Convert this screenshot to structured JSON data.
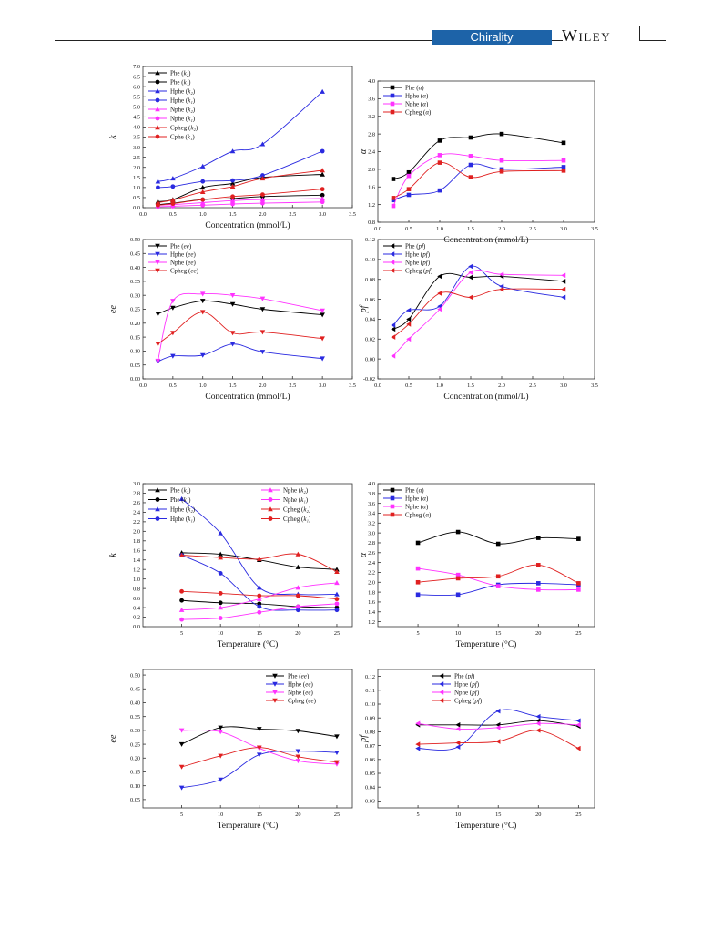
{
  "header": {
    "journal": "Chirality",
    "publisher": "WILEY"
  },
  "chart_data": [
    {
      "id": "c1",
      "type": "scatter",
      "smooth": true,
      "xlabel": "Concentration (mmol/L)",
      "ylabel": "k",
      "xlim": [
        0,
        3.5
      ],
      "ylim": [
        0,
        7.0
      ],
      "xticks": [
        "0.0",
        "0.5",
        "1.0",
        "1.5",
        "2.0",
        "2.5",
        "3.0",
        "3.5"
      ],
      "yticks": [
        "0.0",
        "0.5",
        "1.0",
        "1.5",
        "2.0",
        "2.5",
        "3.0",
        "3.5",
        "4.0",
        "4.5",
        "5.0",
        "5.5",
        "6.0",
        "6.5",
        "7.0"
      ],
      "x": [
        0.25,
        0.5,
        1.0,
        1.5,
        2.0,
        3.0
      ],
      "legend": "top-left",
      "series": [
        {
          "label": "Phe (k₂)",
          "color": "#000000",
          "marker": "tri-up",
          "values": [
            0.3,
            0.4,
            1.0,
            1.2,
            1.5,
            1.65
          ]
        },
        {
          "label": "Phe (k₁)",
          "color": "#000000",
          "marker": "circle",
          "values": [
            0.15,
            0.22,
            0.4,
            0.45,
            0.55,
            0.62
          ]
        },
        {
          "label": "Hphe (k₂)",
          "color": "#2a2ae0",
          "marker": "tri-up",
          "values": [
            1.3,
            1.45,
            2.05,
            2.8,
            3.15,
            5.75
          ]
        },
        {
          "label": "Hphe (k₁)",
          "color": "#2a2ae0",
          "marker": "circle",
          "values": [
            1.0,
            1.05,
            1.3,
            1.35,
            1.6,
            2.8
          ]
        },
        {
          "label": "Nphe (k₂)",
          "color": "#ff33ff",
          "marker": "tri-up",
          "values": [
            0.12,
            0.15,
            0.25,
            0.35,
            0.4,
            0.45
          ]
        },
        {
          "label": "Nphe (k₁)",
          "color": "#ff33ff",
          "marker": "circle",
          "values": [
            0.05,
            0.07,
            0.12,
            0.18,
            0.22,
            0.28
          ]
        },
        {
          "label": "Cpheg (k₂)",
          "color": "#e02020",
          "marker": "tri-up",
          "values": [
            0.25,
            0.38,
            0.78,
            1.05,
            1.45,
            1.85
          ]
        },
        {
          "label": "Cphe (k₁)",
          "color": "#e02020",
          "marker": "circle",
          "values": [
            0.12,
            0.2,
            0.4,
            0.55,
            0.65,
            0.92
          ]
        }
      ]
    },
    {
      "id": "c2",
      "type": "scatter",
      "smooth": true,
      "xlabel": "Concentration (mmol/L)",
      "ylabel": "α",
      "xlim": [
        0,
        3.5
      ],
      "ylim": [
        0.8,
        4.0
      ],
      "xticks": [
        "0.0",
        "0.5",
        "1.0",
        "1.5",
        "2.0",
        "2.5",
        "3.0",
        "3.5"
      ],
      "yticks": [
        "0.8",
        "1.2",
        "1.6",
        "2.0",
        "2.4",
        "2.8",
        "3.2",
        "3.6",
        "4.0"
      ],
      "x": [
        0.25,
        0.5,
        1.0,
        1.5,
        2.0,
        3.0
      ],
      "legend": "top-left",
      "series": [
        {
          "label": "Phe (α)",
          "color": "#000000",
          "marker": "square",
          "values": [
            1.78,
            1.93,
            2.65,
            2.72,
            2.8,
            2.6
          ]
        },
        {
          "label": "Hphe (α)",
          "color": "#2a2ae0",
          "marker": "square",
          "values": [
            1.3,
            1.42,
            1.52,
            2.1,
            2.0,
            2.05
          ]
        },
        {
          "label": "Nphe (α)",
          "color": "#ff33ff",
          "marker": "square",
          "values": [
            1.17,
            1.85,
            2.32,
            2.3,
            2.2,
            2.2
          ]
        },
        {
          "label": "Cpheg (α)",
          "color": "#e02020",
          "marker": "square",
          "values": [
            1.35,
            1.55,
            2.15,
            1.82,
            1.95,
            1.97
          ]
        }
      ]
    },
    {
      "id": "c3",
      "type": "scatter",
      "smooth": true,
      "xlabel": "Concentration (mmol/L)",
      "ylabel": "ee",
      "xlim": [
        0,
        3.5
      ],
      "ylim": [
        0,
        0.5
      ],
      "xticks": [
        "0.0",
        "0.5",
        "1.0",
        "1.5",
        "2.0",
        "2.5",
        "3.0",
        "3.5"
      ],
      "yticks": [
        "0.00",
        "0.05",
        "0.10",
        "0.15",
        "0.20",
        "0.25",
        "0.30",
        "0.35",
        "0.40",
        "0.45",
        "0.50"
      ],
      "x": [
        0.25,
        0.5,
        1.0,
        1.5,
        2.0,
        3.0
      ],
      "legend": "top-left",
      "series": [
        {
          "label": "Phe (ee)",
          "color": "#000000",
          "marker": "tri-down",
          "values": [
            0.233,
            0.255,
            0.28,
            0.268,
            0.25,
            0.23
          ]
        },
        {
          "label": "Hphe (ee)",
          "color": "#2a2ae0",
          "marker": "tri-down",
          "values": [
            0.062,
            0.082,
            0.085,
            0.125,
            0.097,
            0.073
          ]
        },
        {
          "label": "Nphe (ee)",
          "color": "#ff33ff",
          "marker": "tri-down",
          "values": [
            0.065,
            0.28,
            0.305,
            0.3,
            0.288,
            0.245
          ]
        },
        {
          "label": "Cpheg (ee)",
          "color": "#e02020",
          "marker": "tri-down",
          "values": [
            0.125,
            0.165,
            0.24,
            0.165,
            0.168,
            0.145
          ]
        }
      ]
    },
    {
      "id": "c4",
      "type": "scatter",
      "smooth": true,
      "xlabel": "Concentration (mmol/L)",
      "ylabel": "pf",
      "xlim": [
        0,
        3.5
      ],
      "ylim": [
        -0.02,
        0.12
      ],
      "xticks": [
        "0.0",
        "0.5",
        "1.0",
        "1.5",
        "2.0",
        "2.5",
        "3.0",
        "3.5"
      ],
      "yticks": [
        "-0.02",
        "0.00",
        "0.02",
        "0.04",
        "0.06",
        "0.08",
        "0.10",
        "0.12"
      ],
      "x": [
        0.25,
        0.5,
        1.0,
        1.5,
        2.0,
        3.0
      ],
      "legend": "top-left",
      "series": [
        {
          "label": "Phe (pf)",
          "color": "#000000",
          "marker": "tri-left",
          "values": [
            0.03,
            0.04,
            0.083,
            0.082,
            0.083,
            0.078
          ]
        },
        {
          "label": "Hphe (pf)",
          "color": "#2a2ae0",
          "marker": "tri-left",
          "values": [
            0.034,
            0.049,
            0.053,
            0.093,
            0.073,
            0.062
          ]
        },
        {
          "label": "Nphe (pf)",
          "color": "#ff33ff",
          "marker": "tri-left",
          "values": [
            0.003,
            0.02,
            0.05,
            0.087,
            0.085,
            0.084
          ]
        },
        {
          "label": "Cpheg (pf)",
          "color": "#e02020",
          "marker": "tri-left",
          "values": [
            0.022,
            0.035,
            0.066,
            0.062,
            0.07,
            0.07
          ]
        }
      ]
    },
    {
      "id": "c5",
      "type": "scatter",
      "smooth": true,
      "xlabel": "Temperature (°C)",
      "ylabel": "k",
      "xlim": [
        0,
        27
      ],
      "ylim": [
        0,
        3.0
      ],
      "xticks": [
        {
          "v": 5,
          "t": "5"
        },
        {
          "v": 10,
          "t": "10"
        },
        {
          "v": 15,
          "t": "15"
        },
        {
          "v": 20,
          "t": "20"
        },
        {
          "v": 25,
          "t": "25"
        }
      ],
      "yticks": [
        "0.0",
        "0.2",
        "0.4",
        "0.6",
        "0.8",
        "1.0",
        "1.2",
        "1.4",
        "1.6",
        "1.8",
        "2.0",
        "2.2",
        "2.4",
        "2.6",
        "2.8",
        "3.0"
      ],
      "x": [
        5,
        10,
        15,
        20,
        25
      ],
      "legend": "top-two-columns",
      "series": [
        {
          "label": "Phe (k₂)",
          "color": "#000000",
          "marker": "tri-up",
          "values": [
            1.55,
            1.52,
            1.4,
            1.25,
            1.2
          ]
        },
        {
          "label": "Phe (k₁)",
          "color": "#000000",
          "marker": "circle",
          "values": [
            0.55,
            0.5,
            0.48,
            0.42,
            0.4
          ]
        },
        {
          "label": "Hphe (k₂)",
          "color": "#2a2ae0",
          "marker": "tri-up",
          "values": [
            2.68,
            1.96,
            0.82,
            0.68,
            0.68
          ]
        },
        {
          "label": "Hphe (k₁)",
          "color": "#2a2ae0",
          "marker": "circle",
          "values": [
            1.5,
            1.12,
            0.42,
            0.35,
            0.35
          ]
        },
        {
          "label": "Nphe (k₂)",
          "color": "#ff33ff",
          "marker": "tri-up",
          "values": [
            0.35,
            0.4,
            0.58,
            0.82,
            0.92
          ]
        },
        {
          "label": "Nphe (k₁)",
          "color": "#ff33ff",
          "marker": "circle",
          "values": [
            0.15,
            0.18,
            0.3,
            0.42,
            0.48
          ]
        },
        {
          "label": "Cpheg (k₂)",
          "color": "#e02020",
          "marker": "tri-up",
          "values": [
            1.5,
            1.45,
            1.42,
            1.52,
            1.15
          ]
        },
        {
          "label": "Cpheg (k₁)",
          "color": "#e02020",
          "marker": "circle",
          "values": [
            0.74,
            0.7,
            0.65,
            0.65,
            0.58
          ]
        }
      ]
    },
    {
      "id": "c6",
      "type": "scatter",
      "smooth": true,
      "xlabel": "Temperature (°C)",
      "ylabel": "α",
      "xlim": [
        0,
        27
      ],
      "ylim": [
        1.1,
        4.0
      ],
      "xticks": [
        {
          "v": 5,
          "t": "5"
        },
        {
          "v": 10,
          "t": "10"
        },
        {
          "v": 15,
          "t": "15"
        },
        {
          "v": 20,
          "t": "20"
        },
        {
          "v": 25,
          "t": "25"
        }
      ],
      "yticks": [
        "1.2",
        "1.4",
        "1.6",
        "1.8",
        "2.0",
        "2.2",
        "2.4",
        "2.6",
        "2.8",
        "3.0",
        "3.2",
        "3.4",
        "3.6",
        "3.8",
        "4.0"
      ],
      "x": [
        5,
        10,
        15,
        20,
        25
      ],
      "legend": "top-left",
      "series": [
        {
          "label": "Phe (α)",
          "color": "#000000",
          "marker": "square",
          "values": [
            2.8,
            3.02,
            2.78,
            2.9,
            2.88
          ]
        },
        {
          "label": "Hphe (α)",
          "color": "#2a2ae0",
          "marker": "square",
          "values": [
            1.75,
            1.75,
            1.95,
            1.98,
            1.95
          ]
        },
        {
          "label": "Nphe (α)",
          "color": "#ff33ff",
          "marker": "square",
          "values": [
            2.28,
            2.15,
            1.92,
            1.85,
            1.85
          ]
        },
        {
          "label": "Cpheg (α)",
          "color": "#e02020",
          "marker": "square",
          "values": [
            2.0,
            2.08,
            2.12,
            2.35,
            1.98
          ]
        }
      ]
    },
    {
      "id": "c7",
      "type": "scatter",
      "smooth": true,
      "xlabel": "Temperature (°C)",
      "ylabel": "ee",
      "xlim": [
        0,
        27
      ],
      "ylim": [
        0.02,
        0.52
      ],
      "xticks": [
        {
          "v": 5,
          "t": "5"
        },
        {
          "v": 10,
          "t": "10"
        },
        {
          "v": 15,
          "t": "15"
        },
        {
          "v": 20,
          "t": "20"
        },
        {
          "v": 25,
          "t": "25"
        }
      ],
      "yticks": [
        "0.05",
        "0.10",
        "0.15",
        "0.20",
        "0.25",
        "0.30",
        "0.35",
        "0.40",
        "0.45",
        "0.50"
      ],
      "x": [
        5,
        10,
        15,
        20,
        25
      ],
      "legend": "top-right",
      "series": [
        {
          "label": "Phe (ee)",
          "color": "#000000",
          "marker": "tri-down",
          "values": [
            0.25,
            0.31,
            0.305,
            0.298,
            0.278
          ]
        },
        {
          "label": "Hphe (ee)",
          "color": "#2a2ae0",
          "marker": "tri-down",
          "values": [
            0.093,
            0.122,
            0.212,
            0.225,
            0.22
          ]
        },
        {
          "label": "Nphe (ee)",
          "color": "#ff33ff",
          "marker": "tri-down",
          "values": [
            0.3,
            0.295,
            0.235,
            0.19,
            0.178
          ]
        },
        {
          "label": "Cpheg (ee)",
          "color": "#e02020",
          "marker": "tri-down",
          "values": [
            0.168,
            0.208,
            0.238,
            0.205,
            0.185
          ]
        }
      ]
    },
    {
      "id": "c8",
      "type": "scatter",
      "smooth": true,
      "xlabel": "Temperature (°C)",
      "ylabel": "pf",
      "xlim": [
        0,
        27
      ],
      "ylim": [
        0.025,
        0.125
      ],
      "xticks": [
        {
          "v": 5,
          "t": "5"
        },
        {
          "v": 10,
          "t": "10"
        },
        {
          "v": 15,
          "t": "15"
        },
        {
          "v": 20,
          "t": "20"
        },
        {
          "v": 25,
          "t": "25"
        }
      ],
      "yticks": [
        "0.03",
        "0.04",
        "0.05",
        "0.06",
        "0.07",
        "0.08",
        "0.09",
        "0.10",
        "0.11",
        "0.12"
      ],
      "x": [
        5,
        10,
        15,
        20,
        25
      ],
      "legend": "top-center",
      "series": [
        {
          "label": "Phe (pf)",
          "color": "#000000",
          "marker": "tri-left",
          "values": [
            0.085,
            0.085,
            0.085,
            0.088,
            0.084
          ]
        },
        {
          "label": "Hphe (pf)",
          "color": "#2a2ae0",
          "marker": "tri-left",
          "values": [
            0.068,
            0.069,
            0.095,
            0.091,
            0.088
          ]
        },
        {
          "label": "Nphe (pf)",
          "color": "#ff33ff",
          "marker": "tri-left",
          "values": [
            0.086,
            0.082,
            0.083,
            0.086,
            0.085
          ]
        },
        {
          "label": "Cpheg (pf)",
          "color": "#e02020",
          "marker": "tri-left",
          "values": [
            0.071,
            0.072,
            0.073,
            0.081,
            0.068
          ]
        }
      ]
    }
  ]
}
